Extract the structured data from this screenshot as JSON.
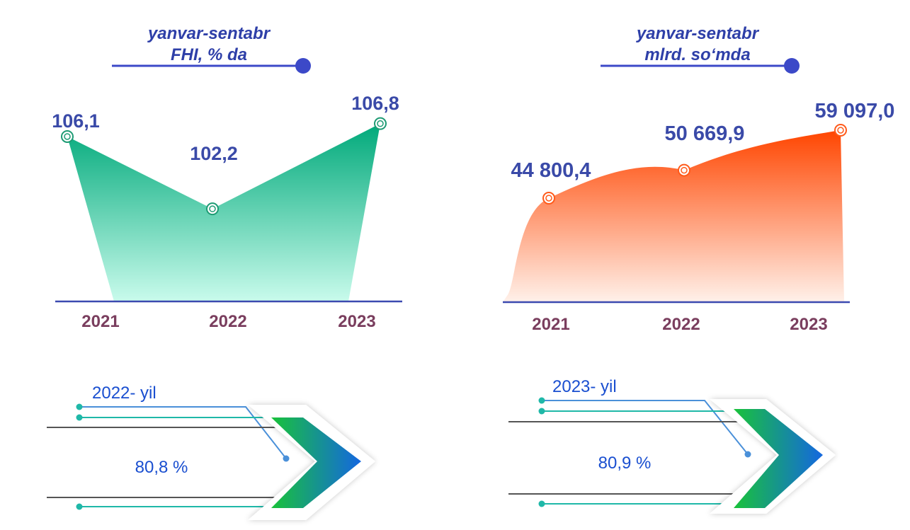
{
  "charts": {
    "left": {
      "title_line1": "yanvar-sentabr",
      "title_line2": "FHI, % da",
      "fill_top": "#00a97a",
      "fill_bottom": "#c9fbec",
      "marker_color": "#1e9b74"
    },
    "right": {
      "title_line1": "yanvar-sentabr",
      "title_line2": "mlrd. so‘mda",
      "fill_top": "#ff4500",
      "fill_bottom": "#fff1ea",
      "marker_color": "#ff5a1a"
    }
  },
  "chart_data": [
    {
      "type": "area",
      "title": "yanvar-sentabr FHI, % da",
      "categories": [
        "2021",
        "2022",
        "2023"
      ],
      "values": [
        106.1,
        102.2,
        106.8
      ],
      "value_labels": [
        "106,1",
        "102,2",
        "106,8"
      ],
      "xlabel": "",
      "ylabel": ""
    },
    {
      "type": "area",
      "title": "yanvar-sentabr mlrd. so‘mda",
      "categories": [
        "2021",
        "2022",
        "2023"
      ],
      "values": [
        44800.4,
        50669.9,
        59097.0
      ],
      "value_labels": [
        "44 800,4",
        "50 669,9",
        "59 097,0"
      ],
      "xlabel": "",
      "ylabel": ""
    }
  ],
  "panels": {
    "left": {
      "year_label": "2022- yil",
      "percent": "80,8 %",
      "percent_value": 80.8
    },
    "right": {
      "year_label": "2023- yil",
      "percent": "80,9 %",
      "percent_value": 80.9
    }
  },
  "colors": {
    "title": "#2e3fa8",
    "title_rule": "#3c49c8",
    "value_label": "#3a4aa8",
    "year_label": "#7a3e5e",
    "axis": "#3c4ab0",
    "panel_text": "#1a4fd0",
    "teal_line": "#1fb8a8",
    "blue_line": "#4a90d9",
    "grey_line": "#555555",
    "chevron_green": "#19c23a",
    "chevron_blue": "#1467e0"
  },
  "icons": [
    "chevron-right-icon",
    "chevron-right-icon"
  ]
}
